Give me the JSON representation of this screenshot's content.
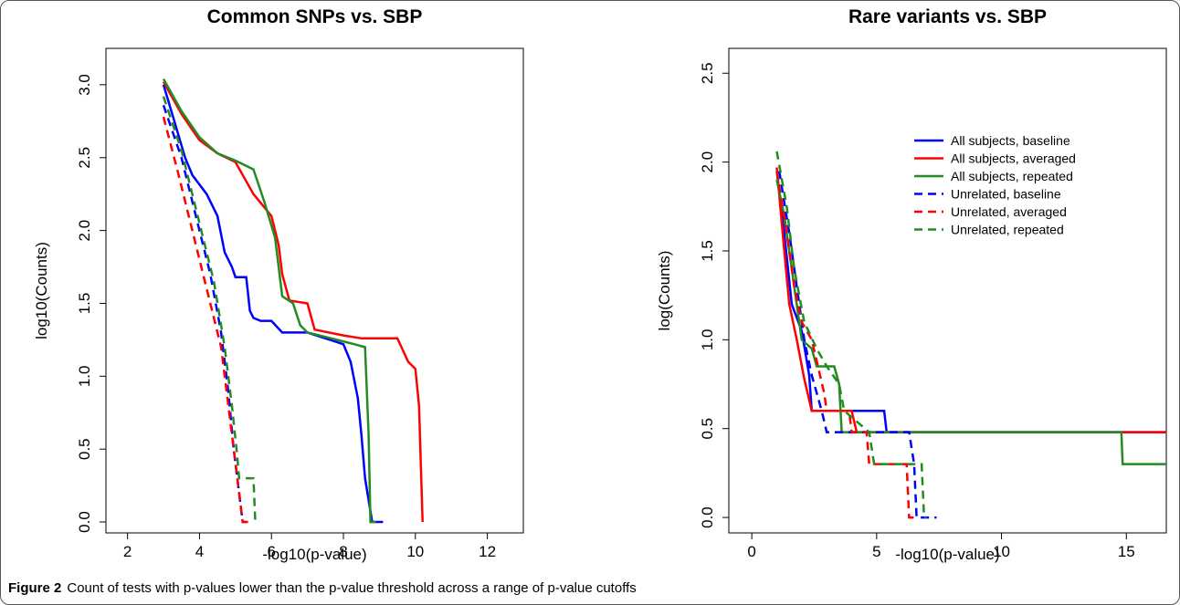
{
  "chart_data": [
    {
      "type": "line",
      "title": "Common SNPs vs. SBP",
      "xlabel": "-log10(p-value)",
      "ylabel": "log10(Counts)",
      "xlim": [
        1.4,
        13.0
      ],
      "ylim": [
        -0.075,
        3.25
      ],
      "xticks": [
        2,
        4,
        6,
        8,
        10,
        12
      ],
      "yticks": [
        {
          "value": 0,
          "label": "0.0"
        },
        0.5,
        {
          "value": 1,
          "label": "1.0"
        },
        1.5,
        {
          "value": 2,
          "label": "2.0"
        },
        2.5,
        {
          "value": 3,
          "label": "3.0"
        }
      ],
      "series": [
        {
          "color": "#0000ff",
          "dash": false,
          "x": [
            3,
            3.3,
            3.6,
            3.8,
            4.2,
            4.5,
            4.7,
            4.9,
            5.0,
            5.3,
            5.4,
            5.5,
            5.7,
            6,
            6.3,
            7,
            7.5,
            8,
            8.2,
            8.4,
            8.5,
            8.6,
            8.8,
            9.1
          ],
          "values": [
            3.0,
            2.75,
            2.5,
            2.38,
            2.25,
            2.1,
            1.85,
            1.75,
            1.68,
            1.68,
            1.45,
            1.4,
            1.38,
            1.38,
            1.3,
            1.3,
            1.26,
            1.22,
            1.1,
            0.85,
            0.6,
            0.3,
            0,
            0
          ]
        },
        {
          "color": "#ff0000",
          "dash": false,
          "x": [
            3,
            3.5,
            4,
            4.5,
            5,
            5.5,
            6,
            6.2,
            6.3,
            6.5,
            7,
            7.2,
            8,
            8.5,
            9.5,
            9.8,
            10,
            10.1,
            10.2
          ],
          "values": [
            3.02,
            2.8,
            2.62,
            2.53,
            2.47,
            2.25,
            2.1,
            1.9,
            1.7,
            1.52,
            1.5,
            1.32,
            1.28,
            1.26,
            1.26,
            1.1,
            1.05,
            0.8,
            0
          ]
        },
        {
          "color": "#228b22",
          "dash": false,
          "x": [
            3,
            3.5,
            4,
            4.5,
            5,
            5.5,
            5.8,
            6.1,
            6.3,
            6.6,
            6.8,
            7,
            7.5,
            8.3,
            8.6,
            8.7,
            8.75,
            8.9
          ],
          "values": [
            3.04,
            2.82,
            2.64,
            2.53,
            2.48,
            2.42,
            2.2,
            1.95,
            1.55,
            1.5,
            1.35,
            1.3,
            1.27,
            1.22,
            1.2,
            0.6,
            0,
            0
          ]
        },
        {
          "color": "#0000ff",
          "dash": true,
          "x": [
            3,
            3.5,
            4,
            4.3,
            4.6,
            4.8,
            4.95,
            5.1,
            5.2,
            5.3
          ],
          "values": [
            2.86,
            2.5,
            2.0,
            1.7,
            1.3,
            0.9,
            0.5,
            0.2,
            0,
            0
          ]
        },
        {
          "color": "#ff0000",
          "dash": true,
          "x": [
            3,
            3.4,
            3.8,
            4.2,
            4.6,
            4.9,
            5.1,
            5.2,
            5.4
          ],
          "values": [
            2.78,
            2.4,
            2.0,
            1.6,
            1.2,
            0.6,
            0.2,
            0,
            0
          ]
        },
        {
          "color": "#228b22",
          "dash": true,
          "x": [
            3,
            3.5,
            4,
            4.4,
            4.7,
            4.9,
            5.05,
            5.1,
            5.5,
            5.55,
            5.6
          ],
          "values": [
            2.92,
            2.55,
            2.05,
            1.65,
            1.2,
            0.8,
            0.45,
            0.3,
            0.3,
            0,
            0
          ]
        }
      ]
    },
    {
      "type": "line",
      "title": "Rare variants vs. SBP",
      "xlabel": "-log10(p-value)",
      "ylabel": "log(Counts)",
      "xlim": [
        -0.92,
        16.6
      ],
      "ylim": [
        -0.087,
        2.64
      ],
      "xticks": [
        0,
        5,
        10,
        15
      ],
      "yticks": [
        {
          "value": 0,
          "label": "0.0"
        },
        0.5,
        {
          "value": 1,
          "label": "1.0"
        },
        1.5,
        {
          "value": 2,
          "label": "2.0"
        },
        2.5
      ],
      "legend": "topright",
      "series": [
        {
          "name": "All subjects, baseline",
          "color": "#0000ff",
          "dash": false,
          "x": [
            1,
            1.3,
            1.6,
            2,
            2.3,
            2.4,
            5.3,
            5.4,
            16.6
          ],
          "values": [
            1.95,
            1.6,
            1.2,
            1.05,
            0.8,
            0.6,
            0.6,
            0.48,
            0.48
          ]
        },
        {
          "name": "All subjects, averaged",
          "color": "#ff0000",
          "dash": false,
          "x": [
            1,
            1.3,
            1.5,
            1.8,
            2.1,
            2.4,
            4.0,
            4.2,
            16.6
          ],
          "values": [
            1.97,
            1.5,
            1.2,
            1.0,
            0.78,
            0.6,
            0.6,
            0.48,
            0.48
          ]
        },
        {
          "name": "All subjects, repeated",
          "color": "#228b22",
          "dash": false,
          "x": [
            1,
            1.3,
            1.7,
            2.0,
            2.4,
            2.6,
            3.3,
            3.5,
            3.6,
            14.8,
            14.85,
            16.6
          ],
          "values": [
            1.9,
            1.7,
            1.3,
            1.0,
            0.95,
            0.85,
            0.85,
            0.75,
            0.48,
            0.48,
            0.3,
            0.3
          ]
        },
        {
          "name": "Unrelated, baseline",
          "color": "#0000ff",
          "dash": true,
          "x": [
            1.1,
            1.5,
            1.8,
            2.1,
            2.4,
            2.8,
            3.0,
            6.3,
            6.5,
            6.6,
            7.4
          ],
          "values": [
            1.95,
            1.6,
            1.3,
            1.0,
            0.8,
            0.6,
            0.48,
            0.48,
            0.3,
            0,
            0
          ]
        },
        {
          "name": "Unrelated, averaged",
          "color": "#ff0000",
          "dash": true,
          "x": [
            1,
            1.4,
            1.7,
            2.0,
            2.4,
            2.9,
            3.0,
            3.9,
            4.0,
            4.6,
            4.7,
            6.2,
            6.3,
            6.6
          ],
          "values": [
            1.95,
            1.6,
            1.3,
            1.1,
            1.0,
            0.7,
            0.6,
            0.6,
            0.48,
            0.48,
            0.3,
            0.3,
            0,
            0
          ]
        },
        {
          "name": "Unrelated, repeated",
          "color": "#228b22",
          "dash": true,
          "x": [
            1,
            1.4,
            1.7,
            2.1,
            2.6,
            3.0,
            3.5,
            3.7,
            4.7,
            4.9,
            6.8,
            6.9,
            7.0
          ],
          "values": [
            2.06,
            1.75,
            1.4,
            1.1,
            0.95,
            0.85,
            0.75,
            0.6,
            0.48,
            0.3,
            0.3,
            0,
            0
          ]
        }
      ]
    }
  ],
  "caption": {
    "label": "Figure 2",
    "text": "Count of tests with p-values lower than the p-value threshold across a range of p-value cutoffs"
  }
}
